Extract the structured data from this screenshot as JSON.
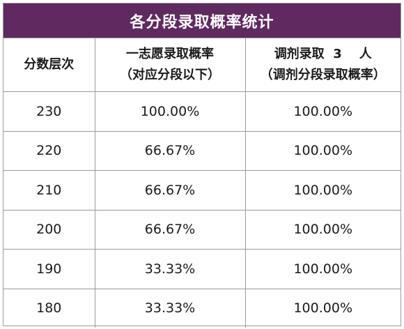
{
  "title": "各分段录取概率统计",
  "headers": [
    {
      "line1": "分数层次",
      "line2": ""
    },
    {
      "line1": "一志愿录取概率",
      "line2": "（对应分段以下）"
    },
    {
      "line1": "调剂录取  3    人",
      "line2": "（调剂分段录取概率）"
    }
  ],
  "rows": [
    {
      "score": "230",
      "first_choice": "100.00%",
      "adjusted": "100.00%"
    },
    {
      "score": "220",
      "first_choice": "66.67%",
      "adjusted": "100.00%"
    },
    {
      "score": "210",
      "first_choice": "66.67%",
      "adjusted": "100.00%"
    },
    {
      "score": "200",
      "first_choice": "66.67%",
      "adjusted": "100.00%"
    },
    {
      "score": "190",
      "first_choice": "33.33%",
      "adjusted": "100.00%"
    },
    {
      "score": "180",
      "first_choice": "33.33%",
      "adjusted": "100.00%"
    }
  ],
  "colors": {
    "title_bg": "#5f2a5f",
    "title_text": "#ffffff",
    "border": "#9a9a9a"
  }
}
